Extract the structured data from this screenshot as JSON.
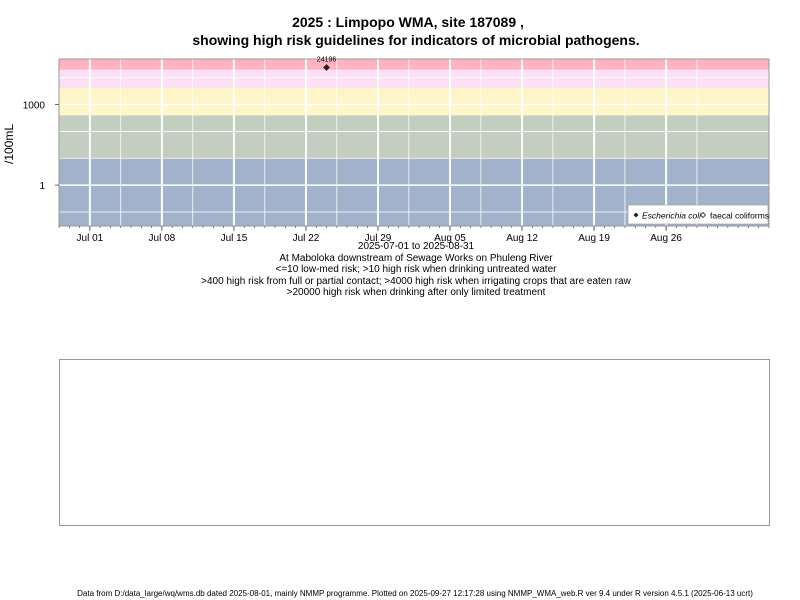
{
  "title_line1": "2025 : Limpopo WMA, site 187089 ,",
  "title_line2": "showing high risk guidelines for indicators of microbial pathogens.",
  "captions": [
    "2025-07-01 to 2025-08-31",
    "At Maboloka downstream of Sewage Works on Phuleng River",
    "<=10 low-med risk; >10 high risk when drinking untreated water",
    ">400 high risk from full or partial contact; >4000 high risk when irrigating crops that are eaten raw",
    ">20000 high risk when drinking after only limited treatment"
  ],
  "footer": "Data from D:/data_large/wq/wms.db dated 2025-08-01, mainly NMMP programme. Plotted on 2025-09-27 12:17:28 using NMMP_WMA_web.R ver 9.4 under R version 4.5.1 (2025-06-13 ucrt)",
  "chart_data": {
    "type": "scatter",
    "ylabel": "/100mL",
    "y_scale": "log10",
    "ylim": [
      0.03,
      50000
    ],
    "xlim": [
      "2025-06-28",
      "2025-09-05"
    ],
    "x_ticks": [
      {
        "date": "2025-07-01",
        "label": "Jul 01"
      },
      {
        "date": "2025-07-08",
        "label": "Jul 08"
      },
      {
        "date": "2025-07-15",
        "label": "Jul 15"
      },
      {
        "date": "2025-07-22",
        "label": "Jul 22"
      },
      {
        "date": "2025-07-29",
        "label": "Jul 29"
      },
      {
        "date": "2025-08-05",
        "label": "Aug 05"
      },
      {
        "date": "2025-08-12",
        "label": "Aug 12"
      },
      {
        "date": "2025-08-19",
        "label": "Aug 19"
      },
      {
        "date": "2025-08-26",
        "label": "Aug 26"
      }
    ],
    "y_ticks": [
      {
        "value": 1,
        "label": "1"
      },
      {
        "value": 1000,
        "label": "1000"
      }
    ],
    "risk_bands": [
      {
        "from": 0.03,
        "to": 10,
        "color": "#a2b2cb"
      },
      {
        "from": 10,
        "to": 400,
        "color": "#c3cdc0"
      },
      {
        "from": 400,
        "to": 4000,
        "color": "#fff6c8"
      },
      {
        "from": 4000,
        "to": 20000,
        "color": "#fde0f3"
      },
      {
        "from": 20000,
        "to": 50000,
        "color": "#ffb2c2"
      }
    ],
    "grid": true,
    "series": [
      {
        "name": "Escherichia coli",
        "marker": "filled-diamond",
        "points": [
          {
            "x": "2025-07-24",
            "y": 24196,
            "label": "24196"
          }
        ]
      },
      {
        "name": "faecal coliforms",
        "marker": "open-diamond",
        "points": []
      }
    ],
    "legend": "bottom-right"
  }
}
